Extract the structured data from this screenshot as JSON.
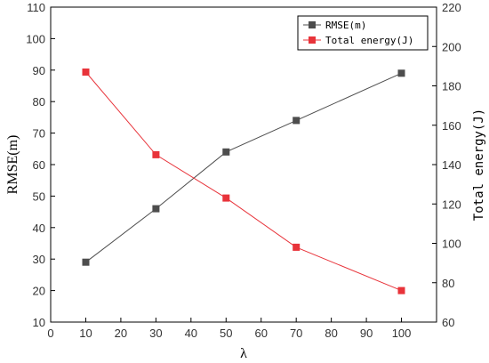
{
  "chart_data": {
    "type": "line",
    "x": [
      10,
      30,
      50,
      70,
      100
    ],
    "xlabel": "λ",
    "xlim": [
      0,
      110
    ],
    "xticks": [
      0,
      10,
      20,
      30,
      40,
      50,
      60,
      70,
      80,
      90,
      100
    ],
    "left_axis": {
      "label": "RMSE(m)",
      "ylim": [
        10,
        110
      ],
      "ticks": [
        10,
        20,
        30,
        40,
        50,
        60,
        70,
        80,
        90,
        100,
        110
      ]
    },
    "right_axis": {
      "label": "Total energy(J)",
      "ylim": [
        60,
        220
      ],
      "ticks": [
        60,
        80,
        100,
        120,
        140,
        160,
        180,
        200,
        220
      ]
    },
    "series": [
      {
        "name": "RMSE(m)",
        "axis": "left",
        "color": "#4d4d4d",
        "marker": "square",
        "values": [
          29,
          46,
          64,
          74,
          89
        ]
      },
      {
        "name": "Total energy(J)",
        "axis": "right",
        "color": "#e8333a",
        "marker": "square",
        "values": [
          187,
          145,
          123,
          98,
          76
        ]
      }
    ],
    "legend": "top-right",
    "grid": false
  }
}
